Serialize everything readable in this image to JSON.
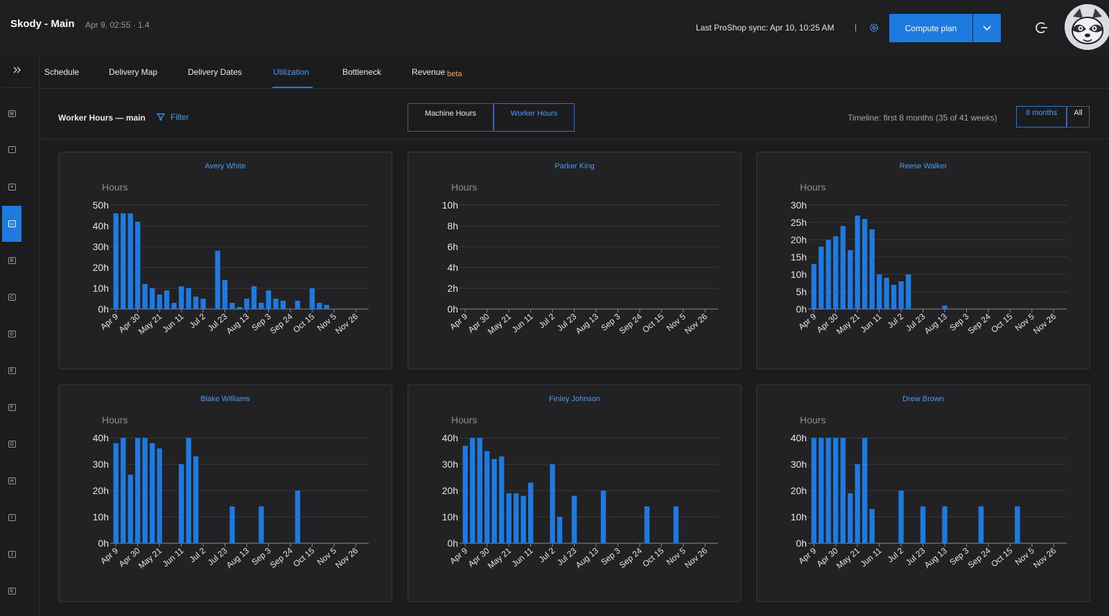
{
  "header": {
    "title": "Skody - Main",
    "meta": "Apr 9, 02:55 · 1.4",
    "sync": "Last ProShop sync: Apr 10, 10:25 AM",
    "sync_separator": "|",
    "compute_label": "Compute plan"
  },
  "sidebar": {
    "items": [
      {
        "label": "cart",
        "glyph": "⊞"
      },
      {
        "label": "gauge",
        "glyph": "◔"
      },
      {
        "label": "list",
        "glyph": "≡"
      },
      {
        "label": "calendar",
        "glyph": "▭"
      },
      {
        "label": "B",
        "glyph": "B"
      },
      {
        "label": "C",
        "glyph": "C"
      },
      {
        "label": "D",
        "glyph": "D"
      },
      {
        "label": "E",
        "glyph": "E"
      },
      {
        "label": "F",
        "glyph": "F"
      },
      {
        "label": "G",
        "glyph": "G"
      },
      {
        "label": "H",
        "glyph": "H"
      },
      {
        "label": "I",
        "glyph": "I"
      },
      {
        "label": "J",
        "glyph": "J"
      },
      {
        "label": "K",
        "glyph": "K"
      }
    ],
    "active_index": 3
  },
  "tabs": [
    {
      "label": "Schedule"
    },
    {
      "label": "Delivery Map"
    },
    {
      "label": "Delivery Dates"
    },
    {
      "label": "Utilization"
    },
    {
      "label": "Bottleneck"
    },
    {
      "label": "Revenue",
      "badge": "beta"
    }
  ],
  "active_tab": "Utilization",
  "subbar": {
    "title": "Worker Hours — main",
    "filter_label": "Filter",
    "mode_machine": "Machine Hours",
    "mode_worker": "Worker Hours",
    "timeline": "Timeline: first 8 months (35 of 41 weeks)",
    "range_8": "8 months",
    "range_all": "All"
  },
  "colors": {
    "accent": "#1f7ae0",
    "bar": "#1f7ae0",
    "grid": "#3a3a3c",
    "text": "#e6e6e6"
  },
  "chart_data": [
    {
      "type": "bar",
      "title": "Avery White",
      "ylabel": "Hours",
      "yticks": [
        "0h",
        "10h",
        "20h",
        "30h",
        "40h",
        "50h"
      ],
      "ylim": [
        0,
        50
      ],
      "xtick_labels": [
        "Apr 9",
        "Apr 30",
        "May 21",
        "Jun 11",
        "Jul 2",
        "Jul 23",
        "Aug 13",
        "Sep 3",
        "Sep 24",
        "Oct 15",
        "Nov 5",
        "Nov 26"
      ],
      "values": [
        46,
        46,
        46,
        42,
        12,
        10,
        7,
        9,
        3,
        11,
        10,
        6,
        5,
        0,
        28,
        14,
        3,
        1,
        5,
        11,
        3,
        9,
        5,
        4,
        0,
        4,
        0,
        10,
        3,
        2,
        0,
        0,
        0,
        0,
        0
      ]
    },
    {
      "type": "bar",
      "title": "Parker King",
      "ylabel": "Hours",
      "yticks": [
        "0h",
        "2h",
        "4h",
        "6h",
        "8h",
        "10h"
      ],
      "ylim": [
        0,
        10
      ],
      "xtick_labels": [
        "Apr 9",
        "Apr 30",
        "May 21",
        "Jun 11",
        "Jul 2",
        "Jul 23",
        "Aug 13",
        "Sep 3",
        "Sep 24",
        "Oct 15",
        "Nov 5",
        "Nov 26"
      ],
      "values": [
        0,
        0,
        0,
        0,
        0,
        0,
        0,
        0,
        0,
        0,
        0,
        0,
        0,
        0,
        0,
        0,
        0,
        0,
        0,
        0,
        0,
        0,
        0,
        0,
        0,
        0,
        0,
        0,
        0,
        0,
        0,
        0,
        0,
        0,
        0
      ]
    },
    {
      "type": "bar",
      "title": "Reese Walker",
      "ylabel": "Hours",
      "yticks": [
        "0h",
        "5h",
        "10h",
        "15h",
        "20h",
        "25h",
        "30h"
      ],
      "ylim": [
        0,
        30
      ],
      "xtick_labels": [
        "Apr 9",
        "Apr 30",
        "May 21",
        "Jun 11",
        "Jul 2",
        "Jul 23",
        "Aug 13",
        "Sep 3",
        "Sep 24",
        "Oct 15",
        "Nov 5",
        "Nov 26"
      ],
      "values": [
        13,
        18,
        20,
        21,
        24,
        17,
        27,
        26,
        23,
        10,
        9,
        7,
        8,
        10,
        0,
        0,
        0,
        0,
        1,
        0,
        0,
        0,
        0,
        0,
        0,
        0,
        0,
        0,
        0,
        0,
        0,
        0,
        0,
        0,
        0
      ]
    },
    {
      "type": "bar",
      "title": "Blake Williams",
      "ylabel": "Hours",
      "yticks": [
        "0h",
        "10h",
        "20h",
        "30h",
        "40h"
      ],
      "ylim": [
        0,
        40
      ],
      "xtick_labels": [
        "Apr 9",
        "Apr 30",
        "May 21",
        "Jun 11",
        "Jul 2",
        "Jul 23",
        "Aug 13",
        "Sep 3",
        "Sep 24",
        "Oct 15",
        "Nov 5",
        "Nov 26"
      ],
      "values": [
        38,
        40,
        26,
        40,
        40,
        38,
        36,
        0,
        0,
        30,
        40,
        33,
        0,
        0,
        0,
        0,
        14,
        0,
        0,
        0,
        14,
        0,
        0,
        0,
        0,
        20,
        0,
        0,
        0,
        0,
        0,
        0,
        0,
        0,
        0
      ]
    },
    {
      "type": "bar",
      "title": "Finley Johnson",
      "ylabel": "Hours",
      "yticks": [
        "0h",
        "10h",
        "20h",
        "30h",
        "40h"
      ],
      "ylim": [
        0,
        40
      ],
      "xtick_labels": [
        "Apr 9",
        "Apr 30",
        "May 21",
        "Jun 11",
        "Jul 2",
        "Jul 23",
        "Aug 13",
        "Sep 3",
        "Sep 24",
        "Oct 15",
        "Nov 5",
        "Nov 26"
      ],
      "values": [
        37,
        40,
        40,
        35,
        32,
        33,
        19,
        19,
        18,
        23,
        0,
        0,
        30,
        10,
        0,
        18,
        0,
        0,
        0,
        20,
        0,
        0,
        0,
        0,
        0,
        14,
        0,
        0,
        0,
        14,
        0,
        0,
        0,
        0,
        0
      ]
    },
    {
      "type": "bar",
      "title": "Drew Brown",
      "ylabel": "Hours",
      "yticks": [
        "0h",
        "10h",
        "20h",
        "30h",
        "40h"
      ],
      "ylim": [
        0,
        40
      ],
      "xtick_labels": [
        "Apr 9",
        "Apr 30",
        "May 21",
        "Jun 11",
        "Jul 2",
        "Jul 23",
        "Aug 13",
        "Sep 3",
        "Sep 24",
        "Oct 15",
        "Nov 5",
        "Nov 26"
      ],
      "values": [
        40,
        40,
        40,
        40,
        40,
        19,
        30,
        40,
        13,
        0,
        0,
        0,
        20,
        0,
        0,
        14,
        0,
        0,
        14,
        0,
        0,
        0,
        0,
        14,
        0,
        0,
        0,
        0,
        14,
        0,
        0,
        0,
        0,
        0,
        0
      ]
    }
  ]
}
